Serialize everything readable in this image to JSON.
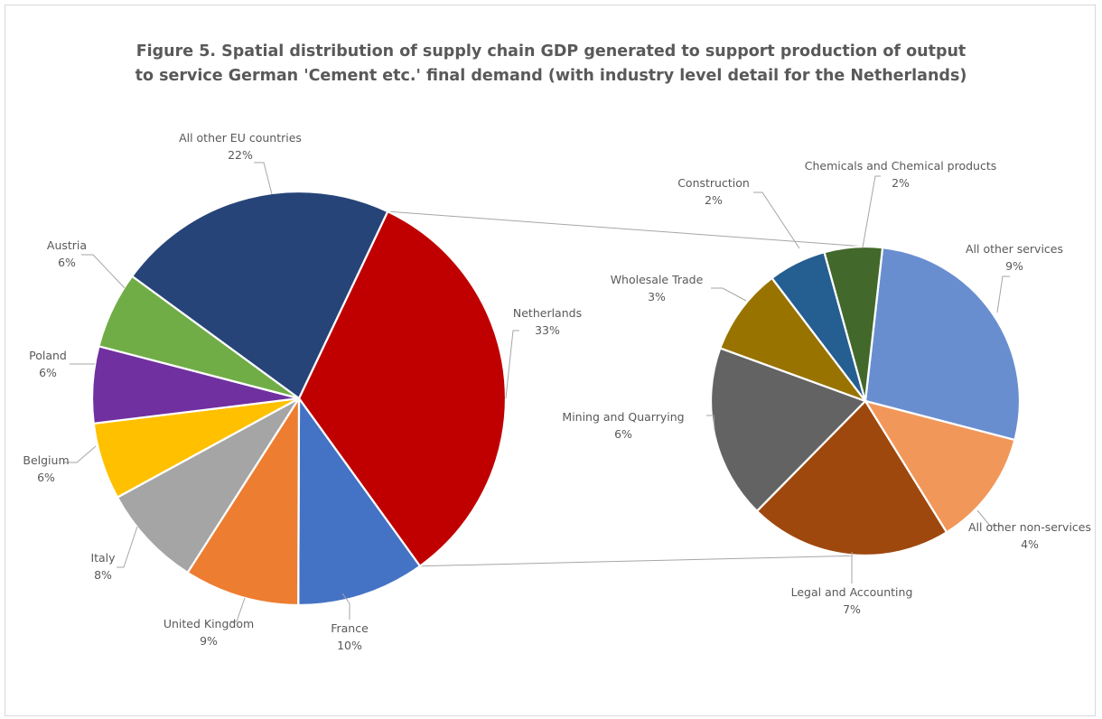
{
  "chart_data": {
    "type": "pie",
    "title_line1": "Figure 5. Spatial distribution of supply chain GDP generated to support production of output",
    "title_line2": "to service German 'Cement etc.' final demand (with industry level detail for the Netherlands)",
    "main_pie": {
      "slices": [
        {
          "name": "Netherlands",
          "label": "33%",
          "value": 33,
          "color": "#C00000"
        },
        {
          "name": "France",
          "label": "10%",
          "value": 10,
          "color": "#4472C4"
        },
        {
          "name": "United Kingdom",
          "label": "9%",
          "value": 9,
          "color": "#ED7D31"
        },
        {
          "name": "Italy",
          "label": "8%",
          "value": 8,
          "color": "#A5A5A5"
        },
        {
          "name": "Belgium",
          "label": "6%",
          "value": 6,
          "color": "#FFC000"
        },
        {
          "name": "Poland",
          "label": "6%",
          "value": 6,
          "color": "#7030A0"
        },
        {
          "name": "Austria",
          "label": "6%",
          "value": 6,
          "color": "#70AD47"
        },
        {
          "name": "All other EU countries",
          "label": "22%",
          "value": 22,
          "color": "#264478"
        }
      ]
    },
    "detail_pie": {
      "of": "Netherlands",
      "slices": [
        {
          "name": "All other services",
          "label": "9%",
          "value": 9,
          "color": "#698ED0"
        },
        {
          "name": "All other non-services",
          "label": "4%",
          "value": 4,
          "color": "#F1975A"
        },
        {
          "name": "Legal and Accounting",
          "label": "7%",
          "value": 7,
          "color": "#9E480E"
        },
        {
          "name": "Mining and Quarrying",
          "label": "6%",
          "value": 6,
          "color": "#636363"
        },
        {
          "name": "Wholesale Trade",
          "label": "3%",
          "value": 3,
          "color": "#997300"
        },
        {
          "name": "Construction",
          "label": "2%",
          "value": 2,
          "color": "#255E91"
        },
        {
          "name": "Chemicals and Chemical products",
          "label": "2%",
          "value": 2,
          "color": "#43682B"
        }
      ]
    }
  }
}
